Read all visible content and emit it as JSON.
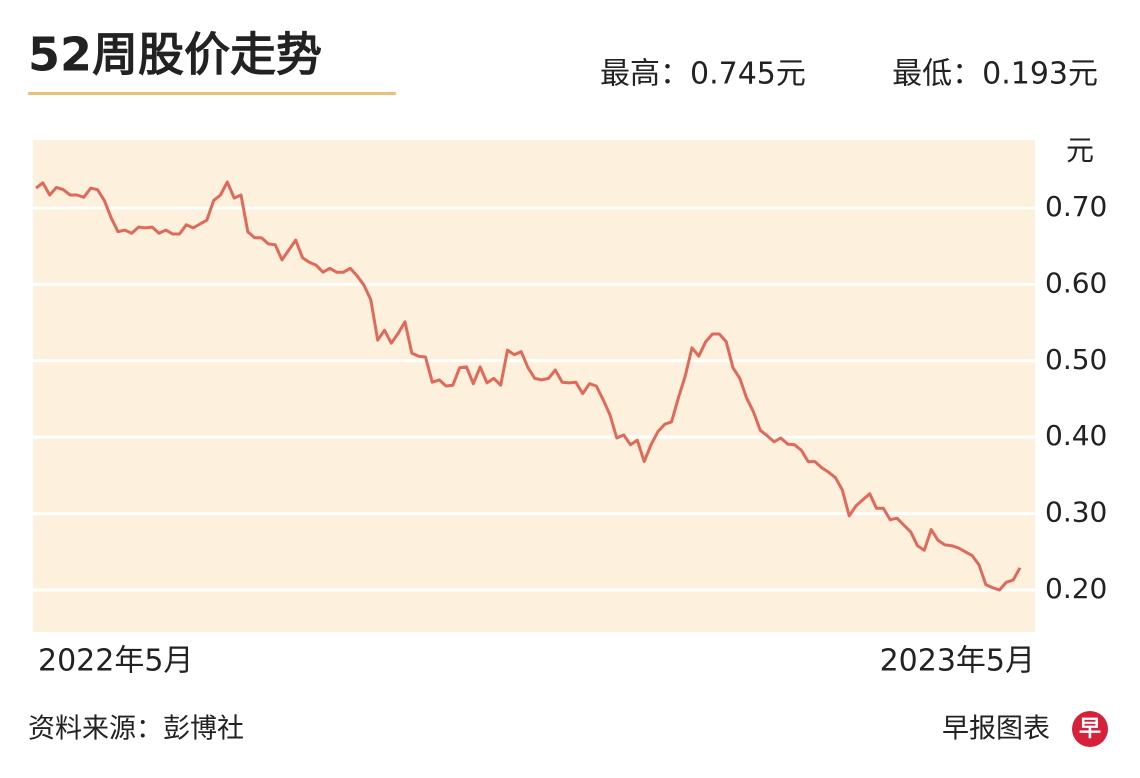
{
  "chart_data": {
    "type": "line",
    "title": "52周股价走势",
    "annotations": [
      "最高：0.745元",
      "最低：0.193元"
    ],
    "y_unit": "元",
    "x_labels": [
      "2022年5月",
      "2023年5月"
    ],
    "source": "资料来源：彭博社",
    "credit": "早报图表",
    "logo": "早",
    "ylim": [
      0.145,
      0.789
    ],
    "yticks": [
      {
        "value": 0.2,
        "label": "0.20"
      },
      {
        "value": 0.3,
        "label": "0.30"
      },
      {
        "value": 0.4,
        "label": "0.40"
      },
      {
        "value": 0.5,
        "label": "0.50"
      },
      {
        "value": 0.6,
        "label": "0.60"
      },
      {
        "value": 0.7,
        "label": "0.70"
      }
    ],
    "grid": true,
    "color": "#e06a5a",
    "background": "#fdf0dc",
    "values": [
      0.726,
      0.733,
      0.717,
      0.727,
      0.724,
      0.717,
      0.717,
      0.714,
      0.726,
      0.724,
      0.71,
      0.687,
      0.669,
      0.671,
      0.667,
      0.675,
      0.674,
      0.675,
      0.667,
      0.671,
      0.666,
      0.666,
      0.678,
      0.674,
      0.679,
      0.684,
      0.71,
      0.717,
      0.734,
      0.713,
      0.717,
      0.669,
      0.661,
      0.661,
      0.653,
      0.652,
      0.632,
      0.645,
      0.658,
      0.635,
      0.629,
      0.625,
      0.616,
      0.621,
      0.616,
      0.616,
      0.621,
      0.611,
      0.599,
      0.58,
      0.527,
      0.54,
      0.523,
      0.536,
      0.551,
      0.51,
      0.506,
      0.505,
      0.472,
      0.475,
      0.467,
      0.468,
      0.491,
      0.492,
      0.47,
      0.492,
      0.471,
      0.477,
      0.468,
      0.514,
      0.508,
      0.512,
      0.491,
      0.477,
      0.475,
      0.477,
      0.488,
      0.472,
      0.471,
      0.472,
      0.457,
      0.47,
      0.467,
      0.449,
      0.429,
      0.399,
      0.403,
      0.39,
      0.396,
      0.368,
      0.39,
      0.407,
      0.417,
      0.42,
      0.451,
      0.48,
      0.517,
      0.506,
      0.525,
      0.535,
      0.535,
      0.525,
      0.491,
      0.477,
      0.451,
      0.433,
      0.409,
      0.402,
      0.394,
      0.399,
      0.391,
      0.39,
      0.383,
      0.368,
      0.368,
      0.36,
      0.354,
      0.347,
      0.331,
      0.297,
      0.31,
      0.318,
      0.326,
      0.307,
      0.307,
      0.292,
      0.294,
      0.285,
      0.276,
      0.258,
      0.252,
      0.279,
      0.265,
      0.259,
      0.258,
      0.255,
      0.25,
      0.245,
      0.233,
      0.207,
      0.203,
      0.2,
      0.21,
      0.213,
      0.229
    ]
  }
}
